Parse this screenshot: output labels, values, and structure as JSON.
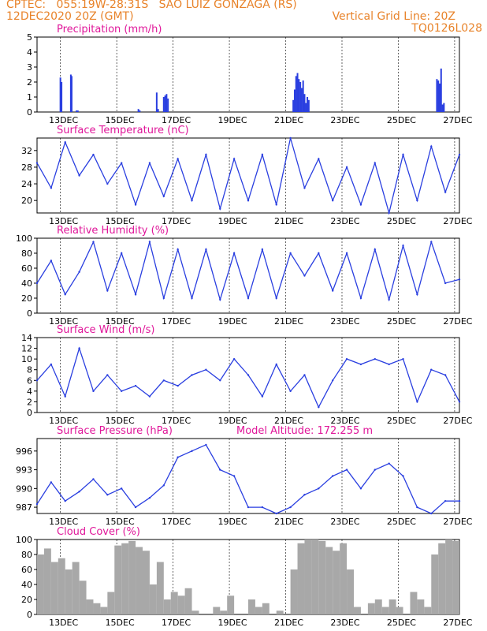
{
  "header": {
    "line1_left": "CPTEC:   055:19W-28:31S   SAO LUIZ GONZAGA (RS)",
    "line2_left": "12DEC2020 20Z (GMT)",
    "line2_right": "Vertical Grid Line: 20Z",
    "line3_right": "TQ0126L028"
  },
  "colors": {
    "line": "#2a3fe0",
    "bar": "#2a3fe0",
    "cloud": "#a8a8a8",
    "title": "#e0179a",
    "header": "#e8832a"
  },
  "chart_data": [
    {
      "type": "bar",
      "title": "Precipitation (mm/h)",
      "ylim": [
        0,
        5
      ],
      "yticks": [
        0,
        1,
        2,
        3,
        4,
        5
      ],
      "x_ticks": [
        "13DEC",
        "15DEC",
        "17DEC",
        "19DEC",
        "21DEC",
        "23DEC",
        "25DEC",
        "27DEC"
      ],
      "grid": true,
      "x_days": [
        0.83,
        0.87,
        1.2,
        1.23,
        1.4,
        1.45,
        3.6,
        3.65,
        4.25,
        4.3,
        4.5,
        4.55,
        4.6,
        4.65,
        9.1,
        9.15,
        9.2,
        9.25,
        9.3,
        9.35,
        9.4,
        9.45,
        9.5,
        9.55,
        9.6,
        9.65,
        14.2,
        14.25,
        14.3,
        14.35,
        14.4,
        14.45
      ],
      "values": [
        2.3,
        2.0,
        2.5,
        2.4,
        0.1,
        0.1,
        0.2,
        0.1,
        1.3,
        0.2,
        1.0,
        1.1,
        1.2,
        0.9,
        0.8,
        1.5,
        2.4,
        2.6,
        2.2,
        2.0,
        1.6,
        2.1,
        1.2,
        0.6,
        1.0,
        0.8,
        2.2,
        2.1,
        1.9,
        2.9,
        0.5,
        0.6
      ]
    },
    {
      "type": "line",
      "title": "Surface Temperature (nC)",
      "ylim": [
        17,
        35
      ],
      "yticks": [
        20,
        24,
        28,
        32
      ],
      "x_ticks": [
        "13DEC",
        "15DEC",
        "17DEC",
        "19DEC",
        "21DEC",
        "23DEC",
        "25DEC",
        "27DEC"
      ],
      "grid": true,
      "x_days": [
        0.0,
        0.5,
        1.0,
        1.5,
        2.0,
        2.5,
        3.0,
        3.5,
        4.0,
        4.5,
        5.0,
        5.5,
        6.0,
        6.5,
        7.0,
        7.5,
        8.0,
        8.5,
        9.0,
        9.5,
        10.0,
        10.5,
        11.0,
        11.5,
        12.0,
        12.5,
        13.0,
        13.5,
        14.0,
        14.5,
        15.0
      ],
      "values": [
        29,
        23,
        34,
        26,
        31,
        24,
        29,
        19,
        29,
        21,
        30,
        20,
        31,
        18,
        30,
        20,
        31,
        19,
        36,
        23,
        30,
        20,
        28,
        19,
        29,
        17,
        31,
        20,
        33,
        22,
        31
      ]
    },
    {
      "type": "line",
      "title": "Relative Humidity (%)",
      "ylim": [
        0,
        100
      ],
      "yticks": [
        0,
        20,
        40,
        60,
        80,
        100
      ],
      "x_ticks": [
        "13DEC",
        "15DEC",
        "17DEC",
        "19DEC",
        "21DEC",
        "23DEC",
        "25DEC",
        "27DEC"
      ],
      "grid": true,
      "x_days": [
        0.0,
        0.5,
        1.0,
        1.5,
        2.0,
        2.5,
        3.0,
        3.5,
        4.0,
        4.5,
        5.0,
        5.5,
        6.0,
        6.5,
        7.0,
        7.5,
        8.0,
        8.5,
        9.0,
        9.5,
        10.0,
        10.5,
        11.0,
        11.5,
        12.0,
        12.5,
        13.0,
        13.5,
        14.0,
        14.5,
        15.0
      ],
      "values": [
        40,
        70,
        25,
        55,
        95,
        30,
        80,
        25,
        95,
        20,
        85,
        20,
        85,
        18,
        80,
        20,
        85,
        20,
        80,
        50,
        80,
        30,
        80,
        20,
        85,
        18,
        90,
        25,
        95,
        40,
        45
      ]
    },
    {
      "type": "line",
      "title": "Surface Wind (m/s)",
      "ylim": [
        0,
        14
      ],
      "yticks": [
        0,
        2,
        4,
        6,
        8,
        10,
        12,
        14
      ],
      "x_ticks": [
        "13DEC",
        "15DEC",
        "17DEC",
        "19DEC",
        "21DEC",
        "23DEC",
        "25DEC",
        "27DEC"
      ],
      "grid": true,
      "x_days": [
        0.0,
        0.5,
        1.0,
        1.5,
        2.0,
        2.5,
        3.0,
        3.5,
        4.0,
        4.5,
        5.0,
        5.5,
        6.0,
        6.5,
        7.0,
        7.5,
        8.0,
        8.5,
        9.0,
        9.5,
        10.0,
        10.5,
        11.0,
        11.5,
        12.0,
        12.5,
        13.0,
        13.5,
        14.0,
        14.5,
        15.0
      ],
      "values": [
        6,
        9,
        3,
        12,
        4,
        7,
        4,
        5,
        3,
        6,
        5,
        7,
        8,
        6,
        10,
        7,
        3,
        9,
        4,
        7,
        1,
        6,
        10,
        9,
        10,
        9,
        10,
        2,
        8,
        7,
        2
      ]
    },
    {
      "type": "line",
      "title": "Surface Pressure (hPa)",
      "annotation": "Model Altitude: 172.255 m",
      "ylim": [
        986,
        998
      ],
      "yticks": [
        987,
        990,
        993,
        996
      ],
      "x_ticks": [
        "13DEC",
        "15DEC",
        "17DEC",
        "19DEC",
        "21DEC",
        "23DEC",
        "25DEC",
        "27DEC"
      ],
      "grid": true,
      "x_days": [
        0.0,
        0.5,
        1.0,
        1.5,
        2.0,
        2.5,
        3.0,
        3.5,
        4.0,
        4.5,
        5.0,
        5.5,
        6.0,
        6.5,
        7.0,
        7.5,
        8.0,
        8.5,
        9.0,
        9.5,
        10.0,
        10.5,
        11.0,
        11.5,
        12.0,
        12.5,
        13.0,
        13.5,
        14.0,
        14.5,
        15.0
      ],
      "values": [
        987.5,
        991,
        988,
        989.5,
        991.5,
        989,
        990,
        987,
        988.5,
        990.5,
        995,
        996,
        997,
        993,
        992,
        987,
        987,
        986,
        987,
        989,
        990,
        992,
        993,
        990,
        993,
        994,
        992,
        987,
        986,
        988,
        988
      ]
    },
    {
      "type": "bar",
      "title": "Cloud Cover (%)",
      "ylim": [
        0,
        100
      ],
      "yticks": [
        0,
        20,
        40,
        60,
        80,
        100
      ],
      "x_ticks": [
        "13DEC",
        "15DEC",
        "17DEC",
        "19DEC",
        "21DEC",
        "23DEC",
        "25DEC",
        "27DEC"
      ],
      "grid": true,
      "x_days": [
        0.0,
        0.25,
        0.5,
        0.75,
        1.0,
        1.25,
        1.5,
        1.75,
        2.0,
        2.25,
        2.5,
        2.75,
        3.0,
        3.25,
        3.5,
        3.75,
        4.0,
        4.25,
        4.5,
        4.75,
        5.0,
        5.25,
        5.5,
        5.75,
        6.0,
        6.25,
        6.5,
        6.75,
        7.0,
        7.25,
        7.5,
        7.75,
        8.0,
        8.25,
        8.5,
        8.75,
        9.0,
        9.25,
        9.5,
        9.75,
        10.0,
        10.25,
        10.5,
        10.75,
        11.0,
        11.25,
        11.5,
        11.75,
        12.0,
        12.25,
        12.5,
        12.75,
        13.0,
        13.25,
        13.5,
        13.75,
        14.0,
        14.25,
        14.5,
        14.75
      ],
      "values": [
        80,
        88,
        70,
        75,
        60,
        70,
        45,
        20,
        15,
        10,
        30,
        92,
        95,
        98,
        90,
        85,
        40,
        70,
        20,
        30,
        25,
        35,
        5,
        0,
        0,
        10,
        5,
        25,
        0,
        0,
        20,
        10,
        15,
        0,
        5,
        0,
        60,
        95,
        100,
        100,
        98,
        90,
        85,
        95,
        60,
        10,
        0,
        15,
        20,
        10,
        20,
        10,
        0,
        30,
        20,
        10,
        80,
        95,
        100,
        98
      ]
    }
  ]
}
